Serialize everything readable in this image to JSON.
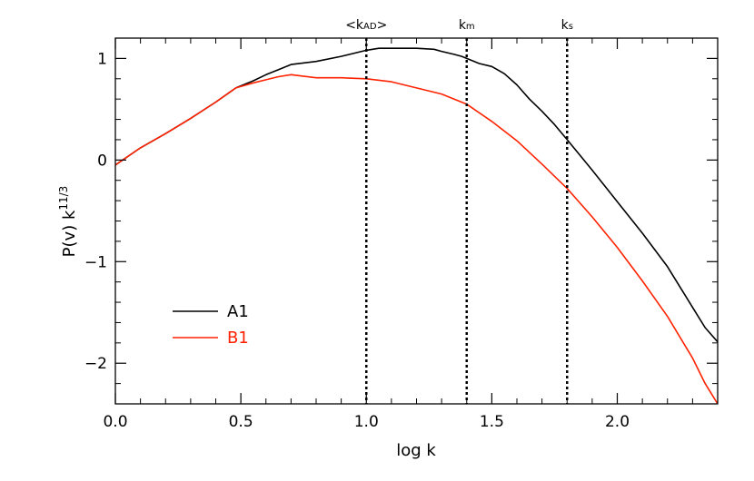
{
  "chart_data": {
    "type": "line",
    "title": "",
    "xlabel": "log k",
    "ylabel": "P(v)  k",
    "ylabel_superscript": "11/3",
    "xlim": [
      0.0,
      2.4
    ],
    "ylim": [
      -2.4,
      1.2
    ],
    "x_ticks": [
      0.0,
      0.5,
      1.0,
      1.5,
      2.0
    ],
    "x_tick_labels": [
      "0.0",
      "0.5",
      "1.0",
      "1.5",
      "2.0"
    ],
    "y_ticks": [
      -2,
      -1,
      0,
      1
    ],
    "y_tick_labels": [
      "−2",
      "−1",
      "0",
      "1"
    ],
    "grid": false,
    "legend_position": "bottom-left",
    "vertical_markers": [
      {
        "x": 1.0,
        "label": "<k",
        "subscript": "AD",
        "suffix": ">"
      },
      {
        "x": 1.4,
        "label": "k",
        "subscript": "m",
        "suffix": ""
      },
      {
        "x": 1.8,
        "label": "k",
        "subscript": "s",
        "suffix": ""
      }
    ],
    "series": [
      {
        "name": "A1",
        "color": "#000000",
        "x": [
          0.0,
          0.1,
          0.2,
          0.3,
          0.4,
          0.48,
          0.55,
          0.6,
          0.65,
          0.7,
          0.8,
          0.9,
          1.0,
          1.05,
          1.1,
          1.2,
          1.27,
          1.3,
          1.35,
          1.38,
          1.4,
          1.42,
          1.45,
          1.5,
          1.55,
          1.6,
          1.65,
          1.7,
          1.75,
          1.8,
          1.9,
          2.0,
          2.1,
          2.2,
          2.3,
          2.35,
          2.4
        ],
        "y": [
          -0.05,
          0.12,
          0.26,
          0.41,
          0.57,
          0.71,
          0.78,
          0.84,
          0.89,
          0.94,
          0.97,
          1.02,
          1.08,
          1.1,
          1.1,
          1.1,
          1.09,
          1.07,
          1.04,
          1.02,
          1.0,
          0.98,
          0.95,
          0.92,
          0.85,
          0.74,
          0.6,
          0.48,
          0.35,
          0.2,
          -0.1,
          -0.41,
          -0.72,
          -1.05,
          -1.45,
          -1.65,
          -1.79
        ]
      },
      {
        "name": "B1",
        "color": "#ff2200",
        "x": [
          0.0,
          0.1,
          0.2,
          0.3,
          0.4,
          0.48,
          0.55,
          0.6,
          0.65,
          0.7,
          0.8,
          0.9,
          1.0,
          1.1,
          1.2,
          1.3,
          1.4,
          1.5,
          1.6,
          1.7,
          1.8,
          1.9,
          2.0,
          2.1,
          2.2,
          2.3,
          2.35,
          2.4
        ],
        "y": [
          -0.05,
          0.12,
          0.26,
          0.41,
          0.57,
          0.71,
          0.76,
          0.79,
          0.82,
          0.84,
          0.81,
          0.81,
          0.8,
          0.77,
          0.71,
          0.65,
          0.55,
          0.38,
          0.19,
          -0.04,
          -0.28,
          -0.56,
          -0.86,
          -1.19,
          -1.54,
          -1.95,
          -2.2,
          -2.4
        ]
      }
    ]
  }
}
